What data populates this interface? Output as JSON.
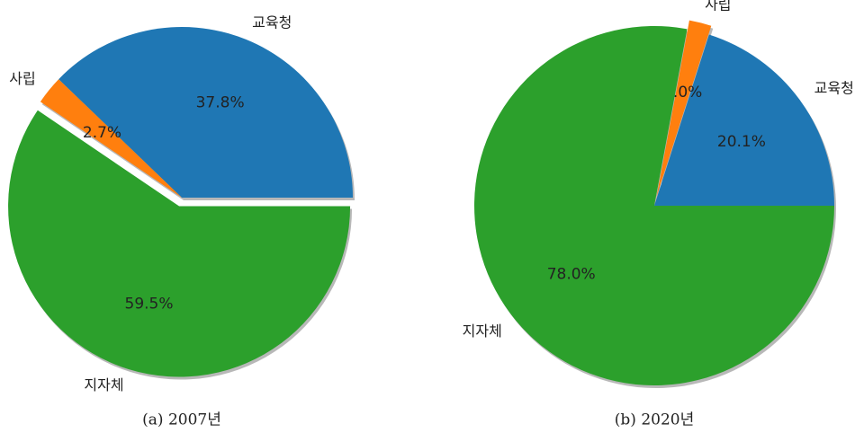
{
  "chart_data": [
    {
      "type": "pie",
      "caption": "(a) 2007년",
      "categories": [
        "교육청",
        "사립",
        "지자체"
      ],
      "values": [
        37.8,
        2.7,
        59.5
      ],
      "value_labels": [
        "37.8%",
        "2.7%",
        "59.5%"
      ],
      "colors": [
        "#1f77b4",
        "#ff7f0e",
        "#2ca02c"
      ]
    },
    {
      "type": "pie",
      "caption": "(b) 2020년",
      "categories": [
        "교육청",
        "사립",
        "지자체"
      ],
      "values": [
        20.1,
        2.0,
        78.0
      ],
      "value_labels": [
        "20.1%",
        "2.0%",
        "78.0%"
      ],
      "colors": [
        "#1f77b4",
        "#ff7f0e",
        "#2ca02c"
      ]
    }
  ]
}
